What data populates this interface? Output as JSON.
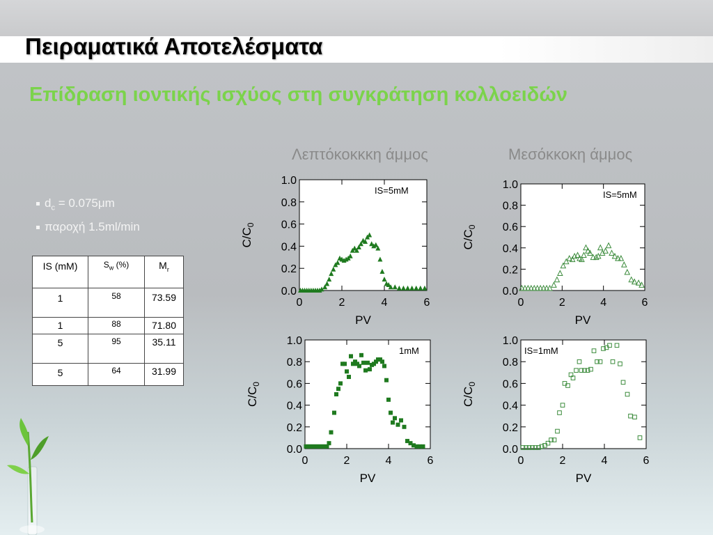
{
  "slide": {
    "title": "Πειραματικά Αποτελέσματα",
    "subtitle": "Επίδραση ιοντικής ισχύος στη συγκράτηση κολλοειδών"
  },
  "bullets": [
    {
      "prefix": "d",
      "sub": "c",
      "rest": " = 0.075μm"
    },
    {
      "prefix": "παροχή 1.5ml/min",
      "sub": "",
      "rest": ""
    }
  ],
  "table": {
    "headers": [
      {
        "main": "IS (mM)",
        "sub": ""
      },
      {
        "main": "S",
        "sub": "w",
        "rest": " (%)"
      },
      {
        "main": "M",
        "sub": "r",
        "rest": ""
      }
    ],
    "rows": [
      [
        "1",
        "58",
        "73.59"
      ],
      [
        "1",
        "88",
        "71.80"
      ],
      [
        "5",
        "95",
        "35.11"
      ],
      [
        "5",
        "64",
        "31.99"
      ]
    ]
  },
  "columns": {
    "left_title": "Λεπτόκοκκκη άμμος",
    "right_title": "Μεσόκκοκη άμμος"
  },
  "chart_data": [
    {
      "type": "scatter",
      "panel": "fine-5mM",
      "annotation": "IS=5mM",
      "xlabel": "PV",
      "ylabel": "C/C0",
      "xlim": [
        0,
        6
      ],
      "ylim": [
        0,
        1.0
      ],
      "xticks": [
        0,
        2,
        4,
        6
      ],
      "yticks": [
        0.0,
        0.2,
        0.4,
        0.6,
        0.8,
        1.0
      ],
      "marker": "filled-triangle",
      "color": "#1f7a1f",
      "series": [
        {
          "x": [
            0.05,
            0.15,
            0.25,
            0.35,
            0.45,
            0.55,
            0.65,
            0.75,
            0.85,
            0.95,
            1.05,
            1.2,
            1.3,
            1.4,
            1.5,
            1.6,
            1.7,
            1.8,
            1.9,
            2.0,
            2.1,
            2.2,
            2.3,
            2.4,
            2.5,
            2.6,
            2.7,
            2.8,
            2.9,
            3.0,
            3.1,
            3.2,
            3.3,
            3.4,
            3.5,
            3.6,
            3.7,
            3.8,
            3.9,
            4.0,
            4.1,
            4.2,
            4.3,
            4.5,
            4.7,
            4.9,
            5.1,
            5.3,
            5.5,
            5.7,
            5.9
          ],
          "y": [
            0.0,
            0.0,
            0.0,
            0.0,
            0.0,
            0.0,
            0.0,
            0.0,
            0.0,
            0.0,
            0.01,
            0.03,
            0.06,
            0.1,
            0.15,
            0.19,
            0.23,
            0.25,
            0.29,
            0.28,
            0.27,
            0.28,
            0.29,
            0.31,
            0.36,
            0.38,
            0.36,
            0.39,
            0.42,
            0.45,
            0.44,
            0.48,
            0.5,
            0.42,
            0.4,
            0.41,
            0.38,
            0.28,
            0.17,
            0.1,
            0.06,
            0.05,
            0.03,
            0.03,
            0.02,
            0.02,
            0.02,
            0.02,
            0.02,
            0.02,
            0.02
          ]
        }
      ]
    },
    {
      "type": "scatter",
      "panel": "medium-5mM",
      "annotation": "IS=5mM",
      "xlabel": "PV",
      "ylabel": "C/C0",
      "xlim": [
        0,
        6
      ],
      "ylim": [
        0,
        1.0
      ],
      "xticks": [
        0,
        2,
        4,
        6
      ],
      "yticks": [
        0.0,
        0.2,
        0.4,
        0.6,
        0.8,
        1.0
      ],
      "marker": "open-triangle",
      "color": "#3a8a3a",
      "series": [
        {
          "x": [
            0.05,
            0.2,
            0.35,
            0.5,
            0.65,
            0.8,
            0.95,
            1.1,
            1.25,
            1.4,
            1.6,
            1.75,
            1.9,
            2.05,
            2.2,
            2.35,
            2.5,
            2.6,
            2.75,
            2.85,
            2.95,
            3.05,
            3.15,
            3.25,
            3.35,
            3.5,
            3.65,
            3.75,
            3.85,
            3.95,
            4.1,
            4.25,
            4.4,
            4.55,
            4.7,
            4.85,
            5.0,
            5.15,
            5.35,
            5.5,
            5.7,
            5.85
          ],
          "y": [
            0.02,
            0.02,
            0.02,
            0.02,
            0.02,
            0.02,
            0.02,
            0.02,
            0.02,
            0.02,
            0.05,
            0.1,
            0.16,
            0.23,
            0.27,
            0.3,
            0.29,
            0.32,
            0.33,
            0.3,
            0.29,
            0.33,
            0.4,
            0.37,
            0.35,
            0.31,
            0.31,
            0.32,
            0.4,
            0.35,
            0.37,
            0.42,
            0.35,
            0.32,
            0.3,
            0.3,
            0.24,
            0.17,
            0.1,
            0.08,
            0.07,
            0.05
          ]
        }
      ]
    },
    {
      "type": "scatter",
      "panel": "fine-1mM",
      "annotation": "1mM",
      "xlabel": "PV",
      "ylabel": "C/C0",
      "xlim": [
        0,
        6
      ],
      "ylim": [
        0,
        1.0
      ],
      "xticks": [
        0,
        2,
        4,
        6
      ],
      "yticks": [
        0.0,
        0.2,
        0.4,
        0.6,
        0.8,
        1.0
      ],
      "marker": "filled-square",
      "color": "#1f7a1f",
      "series": [
        {
          "x": [
            0.05,
            0.15,
            0.25,
            0.35,
            0.45,
            0.55,
            0.65,
            0.75,
            0.85,
            0.95,
            1.05,
            1.15,
            1.25,
            1.4,
            1.5,
            1.6,
            1.7,
            1.8,
            1.9,
            2.0,
            2.1,
            2.2,
            2.3,
            2.4,
            2.5,
            2.6,
            2.7,
            2.8,
            2.9,
            3.0,
            3.1,
            3.2,
            3.3,
            3.4,
            3.5,
            3.6,
            3.7,
            3.8,
            3.9,
            4.0,
            4.1,
            4.2,
            4.3,
            4.45,
            4.6,
            4.75,
            4.9,
            5.05,
            5.2,
            5.35,
            5.5,
            5.65
          ],
          "y": [
            0.02,
            0.02,
            0.02,
            0.02,
            0.02,
            0.02,
            0.02,
            0.02,
            0.02,
            0.02,
            0.02,
            0.05,
            0.15,
            0.33,
            0.5,
            0.55,
            0.6,
            0.78,
            0.78,
            0.71,
            0.66,
            0.85,
            0.78,
            0.8,
            0.78,
            0.76,
            0.86,
            0.79,
            0.72,
            0.79,
            0.73,
            0.77,
            0.78,
            0.8,
            0.82,
            0.82,
            0.8,
            0.76,
            0.63,
            0.45,
            0.33,
            0.24,
            0.28,
            0.22,
            0.26,
            0.2,
            0.07,
            0.05,
            0.03,
            0.02,
            0.02,
            0.02
          ]
        }
      ]
    },
    {
      "type": "scatter",
      "panel": "medium-1mM",
      "annotation": "IS=1mM",
      "xlabel": "PV",
      "ylabel": "C/C0",
      "xlim": [
        0,
        6
      ],
      "ylim": [
        0,
        1.0
      ],
      "xticks": [
        0,
        2,
        4,
        6
      ],
      "yticks": [
        0.0,
        0.2,
        0.4,
        0.6,
        0.8,
        1.0
      ],
      "marker": "open-square",
      "color": "#3a8a3a",
      "series": [
        {
          "x": [
            0.1,
            0.25,
            0.4,
            0.55,
            0.7,
            0.85,
            1.0,
            1.15,
            1.3,
            1.45,
            1.6,
            1.75,
            1.85,
            2.0,
            2.1,
            2.25,
            2.4,
            2.5,
            2.65,
            2.8,
            2.9,
            3.05,
            3.2,
            3.35,
            3.5,
            3.65,
            3.8,
            3.95,
            4.1,
            4.25,
            4.4,
            4.6,
            4.75,
            4.9,
            5.1,
            5.25,
            5.45,
            5.7
          ],
          "y": [
            0.01,
            0.01,
            0.01,
            0.01,
            0.01,
            0.01,
            0.02,
            0.03,
            0.05,
            0.08,
            0.08,
            0.16,
            0.33,
            0.4,
            0.6,
            0.58,
            0.68,
            0.65,
            0.72,
            0.8,
            0.72,
            0.72,
            0.72,
            0.73,
            0.9,
            0.8,
            0.8,
            0.92,
            0.93,
            0.95,
            0.8,
            0.95,
            0.78,
            0.61,
            0.5,
            0.3,
            0.29,
            0.1
          ]
        }
      ]
    }
  ]
}
